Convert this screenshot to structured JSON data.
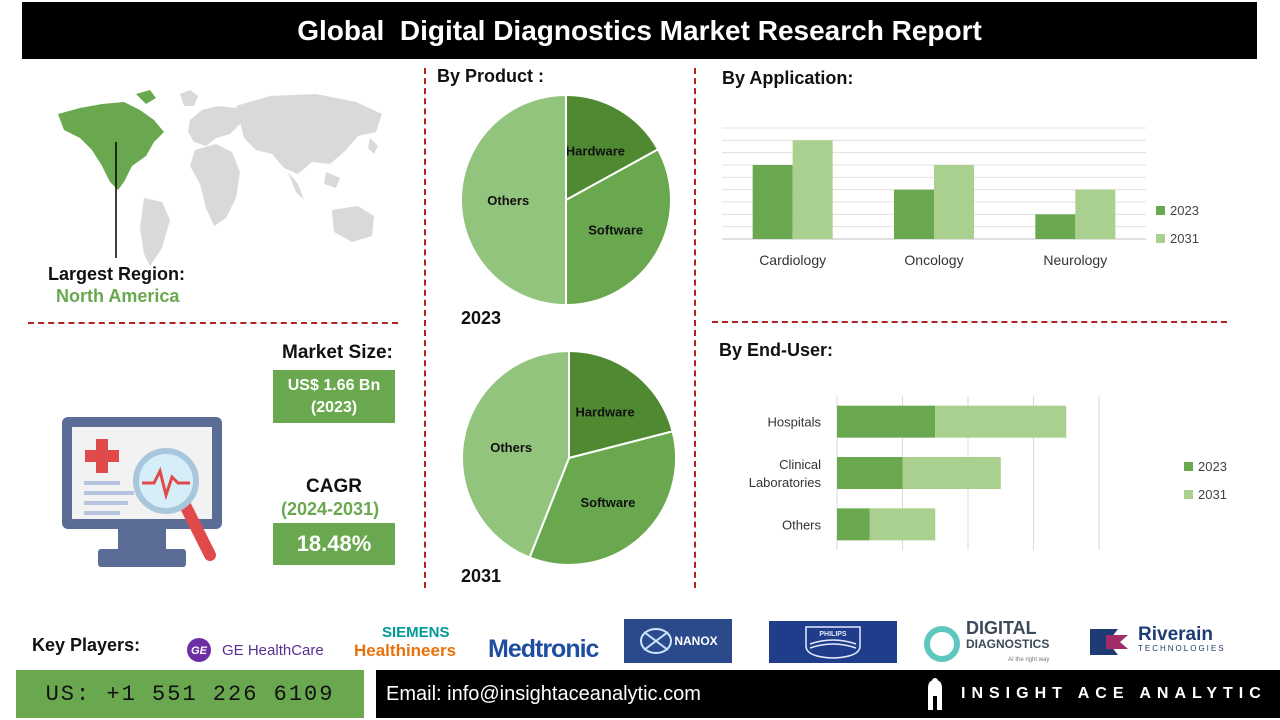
{
  "title": "Global  Digital Diagnostics Market Research Report",
  "region": {
    "label": "Largest Region:",
    "value": "North America"
  },
  "market_size": {
    "label": "Market Size:",
    "value_line1": "US$ 1.66 Bn",
    "value_line2": "(2023)"
  },
  "cagr": {
    "label": "CAGR",
    "period": "(2024-2031)",
    "value": "18.48%"
  },
  "product_section": {
    "heading": "By Product :"
  },
  "application_section": {
    "heading": "By  Application:"
  },
  "enduser_section": {
    "heading": "By End-User:"
  },
  "key_players": {
    "label": "Key Players:",
    "logos": {
      "ge": "GE HealthCare",
      "siemens_line1": "SIEMENS",
      "siemens_line2": "Healthineers",
      "medtronic": "Medtronic",
      "nanox": "NANOX",
      "philips": "PHILIPS",
      "digital_line1": "DIGITAL",
      "digital_line2": "DIAGNOSTICS",
      "digital_tagline": "AI the right way",
      "riverain_line1": "Riverain",
      "riverain_line2": "TECHNOLOGIES"
    }
  },
  "footer": {
    "phone": "US: +1 551 226 6109",
    "email": "Email: info@insightaceanalytic.com",
    "brand": "INSIGHT ACE ANALYTIC"
  },
  "colors": {
    "dark_green": "#5a9a3c",
    "mid_green": "#6aa84f",
    "light_green": "#a9d08e",
    "pie_light": "#93c47d",
    "accent_red": "#b22222"
  },
  "chart_data": [
    {
      "type": "pie",
      "title": "2023",
      "labels": [
        "Hardware",
        "Software",
        "Others"
      ],
      "values": [
        17,
        33,
        50
      ],
      "colors": [
        "#4f8a33",
        "#6aa84f",
        "#93c47d"
      ]
    },
    {
      "type": "pie",
      "title": "2031",
      "labels": [
        "Hardware",
        "Software",
        "Others"
      ],
      "values": [
        21,
        35,
        44
      ],
      "colors": [
        "#4f8a33",
        "#6aa84f",
        "#93c47d"
      ]
    },
    {
      "type": "bar",
      "categories": [
        "Cardiology",
        "Oncology",
        "Neurology"
      ],
      "series": [
        {
          "name": "2023",
          "values": [
            3,
            2,
            1
          ],
          "color": "#6aa84f"
        },
        {
          "name": "2031",
          "values": [
            4,
            3,
            2
          ],
          "color": "#a9d08e"
        }
      ],
      "ylim": [
        0,
        4.5
      ],
      "grid": true,
      "legend": "right"
    },
    {
      "type": "bar",
      "orientation": "horizontal",
      "stacked": true,
      "categories": [
        "Hospitals",
        "Clinical Laboratories",
        "Others"
      ],
      "series": [
        {
          "name": "2023",
          "values": [
            1.5,
            1.0,
            0.5
          ],
          "color": "#6aa84f"
        },
        {
          "name": "2031",
          "values": [
            2.0,
            1.5,
            1.0
          ],
          "color": "#a9d08e"
        }
      ],
      "xlim": [
        0,
        4
      ],
      "grid": true,
      "legend": "right"
    }
  ]
}
